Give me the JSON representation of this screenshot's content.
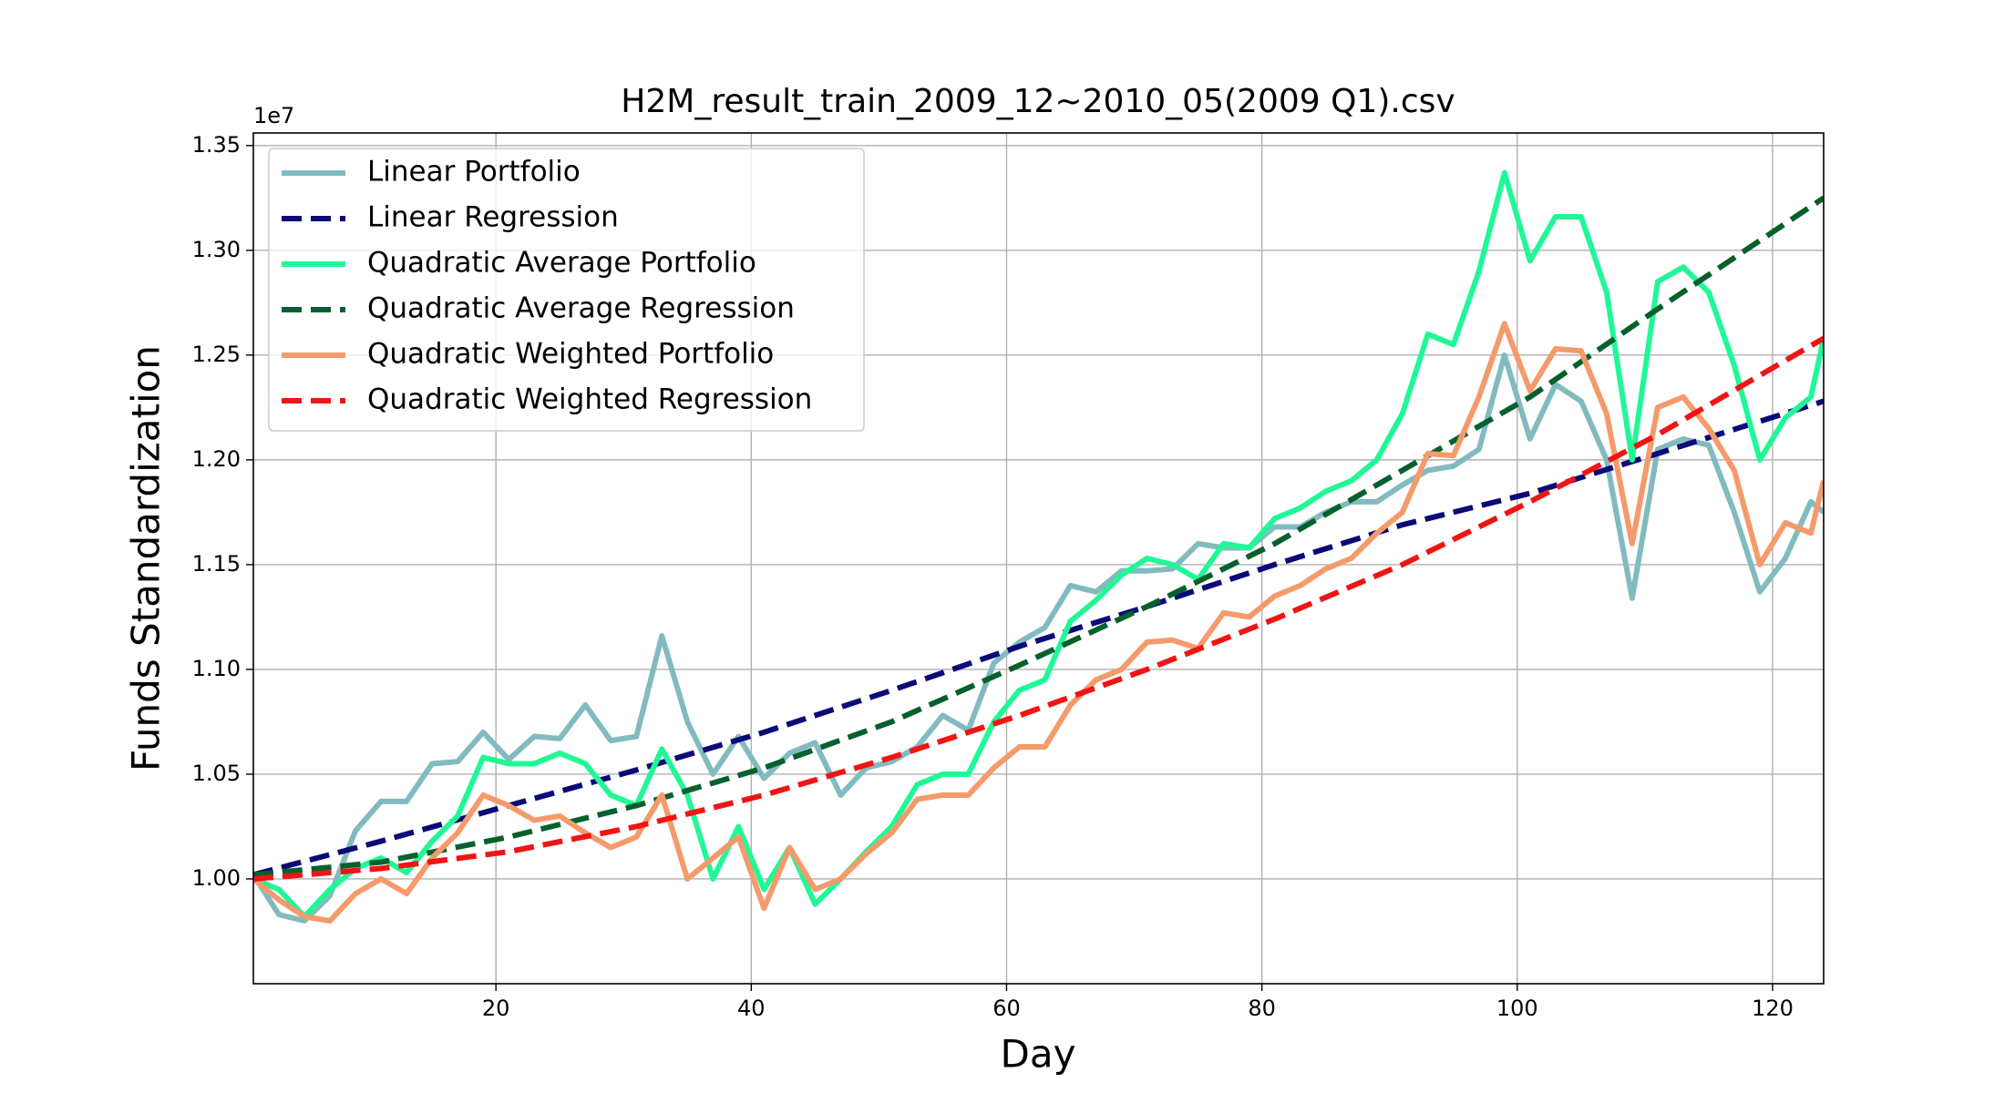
{
  "chart_data": {
    "type": "line",
    "title": "H2M_result_train_2009_12~2010_05(2009 Q1).csv",
    "x_label": "Day",
    "y_label": "Funds Standardization",
    "y_offset_label": "1e7",
    "x": [
      1,
      3,
      5,
      7,
      9,
      11,
      13,
      15,
      17,
      19,
      21,
      23,
      25,
      27,
      29,
      31,
      33,
      35,
      37,
      39,
      41,
      43,
      45,
      47,
      49,
      51,
      53,
      55,
      57,
      59,
      61,
      63,
      65,
      67,
      69,
      71,
      73,
      75,
      77,
      79,
      81,
      83,
      85,
      87,
      89,
      91,
      93,
      95,
      97,
      99,
      101,
      103,
      105,
      107,
      109,
      111,
      113,
      115,
      117,
      119,
      121,
      123,
      124
    ],
    "series": [
      {
        "name": "Linear Portfolio",
        "color": "#82bbbf",
        "dashed": false,
        "values": [
          1.002,
          0.983,
          0.98,
          0.992,
          1.023,
          1.037,
          1.037,
          1.055,
          1.056,
          1.07,
          1.057,
          1.068,
          1.067,
          1.083,
          1.066,
          1.068,
          1.116,
          1.075,
          1.05,
          1.068,
          1.048,
          1.06,
          1.065,
          1.04,
          1.053,
          1.056,
          1.063,
          1.078,
          1.071,
          1.103,
          1.113,
          1.12,
          1.14,
          1.137,
          1.147,
          1.147,
          1.148,
          1.16,
          1.158,
          1.158,
          1.168,
          1.168,
          1.175,
          1.18,
          1.18,
          1.188,
          1.195,
          1.197,
          1.205,
          1.25,
          1.21,
          1.236,
          1.228,
          1.2,
          1.134,
          1.205,
          1.21,
          1.207,
          1.175,
          1.137,
          1.153,
          1.18,
          1.175
        ]
      },
      {
        "name": "Linear Regression",
        "color": "#0a0a78",
        "dashed": true,
        "x": [
          1,
          11,
          21,
          31,
          41,
          51,
          61,
          71,
          81,
          91,
          101,
          111,
          124
        ],
        "values": [
          1.002,
          1.018,
          1.035,
          1.052,
          1.07,
          1.09,
          1.111,
          1.13,
          1.15,
          1.169,
          1.184,
          1.203,
          1.228
        ]
      },
      {
        "name": "Quadratic Average Portfolio",
        "color": "#20f896",
        "dashed": false,
        "values": [
          1.0,
          0.995,
          0.982,
          0.995,
          1.005,
          1.01,
          1.003,
          1.018,
          1.03,
          1.058,
          1.055,
          1.055,
          1.06,
          1.055,
          1.04,
          1.035,
          1.062,
          1.04,
          1.0,
          1.025,
          0.995,
          1.015,
          0.988,
          1.0,
          1.013,
          1.025,
          1.045,
          1.05,
          1.05,
          1.075,
          1.09,
          1.095,
          1.123,
          1.133,
          1.145,
          1.153,
          1.15,
          1.143,
          1.16,
          1.158,
          1.172,
          1.177,
          1.185,
          1.19,
          1.2,
          1.222,
          1.26,
          1.255,
          1.29,
          1.337,
          1.295,
          1.316,
          1.316,
          1.28,
          1.2,
          1.285,
          1.292,
          1.28,
          1.245,
          1.2,
          1.22,
          1.23,
          1.258
        ]
      },
      {
        "name": "Quadratic Average Regression",
        "color": "#06602e",
        "dashed": true,
        "x": [
          1,
          11,
          21,
          31,
          41,
          51,
          61,
          71,
          81,
          91,
          101,
          111,
          124
        ],
        "values": [
          1.002,
          1.008,
          1.02,
          1.035,
          1.053,
          1.075,
          1.102,
          1.13,
          1.16,
          1.195,
          1.23,
          1.272,
          1.325
        ]
      },
      {
        "name": "Quadratic Weighted Portfolio",
        "color": "#f59a6b",
        "dashed": false,
        "values": [
          1.0,
          0.99,
          0.982,
          0.98,
          0.993,
          1.0,
          0.993,
          1.01,
          1.022,
          1.04,
          1.035,
          1.028,
          1.03,
          1.022,
          1.015,
          1.02,
          1.04,
          1.0,
          1.01,
          1.02,
          0.986,
          1.015,
          0.995,
          1.0,
          1.012,
          1.022,
          1.038,
          1.04,
          1.04,
          1.053,
          1.063,
          1.063,
          1.083,
          1.095,
          1.1,
          1.113,
          1.114,
          1.11,
          1.127,
          1.125,
          1.135,
          1.14,
          1.148,
          1.153,
          1.165,
          1.175,
          1.203,
          1.202,
          1.23,
          1.265,
          1.233,
          1.253,
          1.252,
          1.222,
          1.16,
          1.225,
          1.23,
          1.215,
          1.195,
          1.15,
          1.17,
          1.165,
          1.19
        ]
      },
      {
        "name": "Quadratic Weighted Regression",
        "color": "#f01414",
        "dashed": true,
        "x": [
          1,
          11,
          21,
          31,
          41,
          51,
          61,
          71,
          81,
          91,
          101,
          111,
          124
        ],
        "values": [
          1.0,
          1.005,
          1.013,
          1.025,
          1.04,
          1.058,
          1.078,
          1.1,
          1.124,
          1.15,
          1.18,
          1.212,
          1.258
        ]
      }
    ],
    "xlim": [
      1,
      124
    ],
    "xticks": [
      20,
      40,
      60,
      80,
      100,
      120
    ],
    "ylim": [
      0.95,
      1.356
    ],
    "yticks": [
      {
        "value": 1.0,
        "label": "1.00"
      },
      {
        "value": 1.05,
        "label": "1.05"
      },
      {
        "value": 1.1,
        "label": "1.10"
      },
      {
        "value": 1.15,
        "label": "1.15"
      },
      {
        "value": 1.2,
        "label": "1.20"
      },
      {
        "value": 1.25,
        "label": "1.25"
      },
      {
        "value": 1.3,
        "label": "1.30"
      },
      {
        "value": 1.35,
        "label": "1.35"
      }
    ],
    "grid": true,
    "legend": "upper-left"
  }
}
